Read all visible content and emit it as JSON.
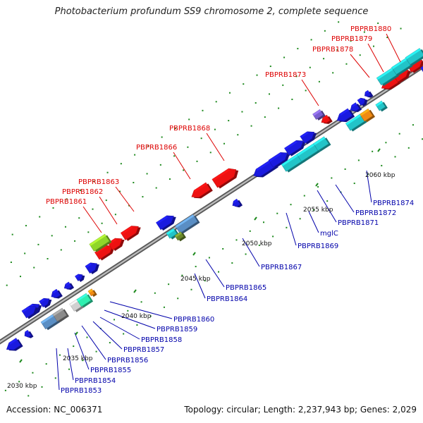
{
  "header": {
    "title": "Photobacterium profundum SS9 chromosome 2, complete sequence"
  },
  "footer": {
    "accession": "Accession: NC_006371",
    "summary": "Topology: circular; Length: 2,237,943 bp; Genes: 2,029"
  },
  "colors": {
    "backbone": "#7f7f7f",
    "tick": "#1e8a1e",
    "label_red": "#dd0000",
    "label_blue": "#0000aa",
    "gene_red": "#ee1111",
    "gene_blue": "#1a1adf",
    "gene_cyan": "#22c4c8",
    "gene_steel": "#5a8ec4",
    "gene_lime": "#8fd62a",
    "gene_orange": "#f08a12",
    "gene_purple": "#7a5fd0",
    "gene_mint": "#2ff0b0",
    "gene_gray": "#8a8a8a",
    "gene_olive": "#6b8a2a",
    "gene_lightgray": "#d0d0d0"
  },
  "axis": {
    "unit": "kbp",
    "ticks": [
      {
        "label": "2030 kbp"
      },
      {
        "label": "2035 kbp"
      },
      {
        "label": "2040 kbp"
      },
      {
        "label": "2045 kbp"
      },
      {
        "label": "2050 kbp"
      },
      {
        "label": "2055 kbp"
      },
      {
        "label": "2060 kbp"
      }
    ]
  },
  "gene_labels": {
    "red": [
      "PBPRB1880",
      "PBPRB1879",
      "PBPRB1878",
      "PBPRB1873",
      "PBPRB1868",
      "PBPRB1866",
      "PBPRB1863",
      "PBPRB1862",
      "PBPRB1861"
    ],
    "blue": [
      "PBPRB1874",
      "PBPRB1872",
      "PBPRB1871",
      "mglC",
      "PBPRB1869",
      "PBPRB1867",
      "PBPRB1865",
      "PBPRB1864",
      "PBPRB1860",
      "PBPRB1859",
      "PBPRB1858",
      "PBPRB1857",
      "PBPRB1856",
      "PBPRB1855",
      "PBPRB1854",
      "PBPRB1853"
    ]
  }
}
